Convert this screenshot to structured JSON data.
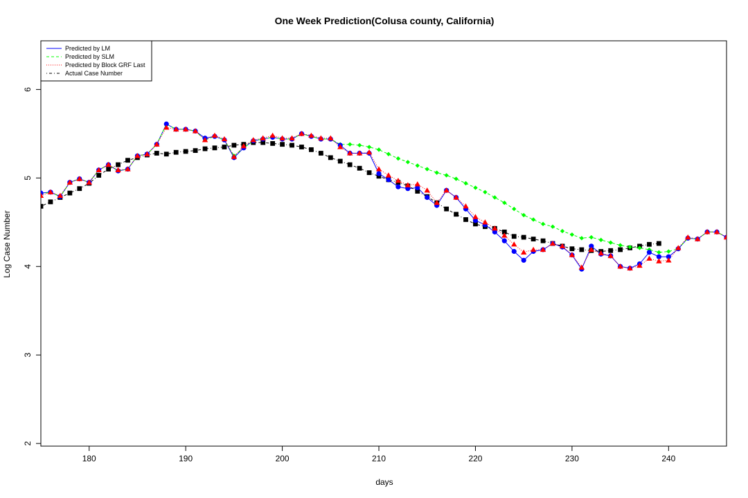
{
  "chart_data": {
    "type": "line",
    "title": "One Week Prediction(Colusa county, California)",
    "xlabel": "days",
    "ylabel": "Log Case Number",
    "xlim": [
      175,
      246
    ],
    "ylim": [
      1.97,
      6.55
    ],
    "xticks": [
      180,
      190,
      200,
      210,
      220,
      230,
      240
    ],
    "yticks": [
      2,
      3,
      4,
      5,
      6
    ],
    "grid": false,
    "legend_position": "top-left",
    "x": [
      175,
      176,
      177,
      178,
      179,
      180,
      181,
      182,
      183,
      184,
      185,
      186,
      187,
      188,
      189,
      190,
      191,
      192,
      193,
      194,
      195,
      196,
      197,
      198,
      199,
      200,
      201,
      202,
      203,
      204,
      205,
      206,
      207,
      208,
      209,
      210,
      211,
      212,
      213,
      214,
      215,
      216,
      217,
      218,
      219,
      220,
      221,
      222,
      223,
      224,
      225,
      226,
      227,
      228,
      229,
      230,
      231,
      232,
      233,
      234,
      235,
      236,
      237,
      238,
      239,
      240,
      241,
      242,
      243,
      244,
      245,
      246
    ],
    "series": [
      {
        "name": "Predicted by LM",
        "color": "#0000ff",
        "line_style": "solid",
        "marker": "circle",
        "values": [
          4.83,
          4.84,
          4.79,
          4.95,
          4.99,
          4.95,
          5.09,
          5.15,
          5.08,
          5.1,
          5.25,
          5.27,
          5.38,
          5.61,
          5.55,
          5.55,
          5.53,
          5.45,
          5.47,
          5.43,
          5.23,
          5.34,
          5.42,
          5.44,
          5.46,
          5.44,
          5.44,
          5.5,
          5.47,
          5.44,
          5.44,
          5.37,
          5.28,
          5.28,
          5.28,
          5.05,
          4.98,
          4.9,
          4.88,
          4.89,
          4.78,
          4.69,
          4.86,
          4.78,
          4.65,
          4.52,
          4.47,
          4.39,
          4.29,
          4.17,
          4.07,
          4.17,
          4.19,
          4.26,
          4.22,
          4.13,
          3.97,
          4.23,
          4.14,
          4.12,
          4.0,
          3.98,
          4.03,
          4.16,
          4.11,
          4.11,
          4.2,
          4.32,
          4.31,
          4.39,
          4.39,
          4.33
        ]
      },
      {
        "name": "Predicted by SLM",
        "color": "#00ff00",
        "line_style": "dashed",
        "marker": "diamond",
        "values": [
          4.82,
          4.84,
          4.79,
          4.95,
          4.99,
          4.95,
          5.09,
          5.15,
          5.08,
          5.1,
          5.25,
          5.27,
          5.38,
          5.61,
          5.55,
          5.55,
          5.53,
          5.43,
          5.47,
          5.43,
          5.25,
          5.34,
          5.42,
          5.44,
          5.46,
          5.44,
          5.44,
          5.5,
          5.47,
          5.44,
          5.44,
          5.38,
          5.38,
          5.37,
          5.35,
          5.32,
          5.27,
          5.22,
          5.18,
          5.14,
          5.1,
          5.06,
          5.03,
          4.99,
          4.94,
          4.89,
          4.84,
          4.78,
          4.72,
          4.65,
          4.58,
          4.53,
          4.48,
          4.45,
          4.4,
          4.36,
          4.32,
          4.33,
          4.3,
          4.27,
          4.24,
          4.22,
          4.21,
          4.19,
          4.16,
          4.17,
          4.2,
          4.32,
          4.31,
          4.39,
          4.39,
          4.33
        ]
      },
      {
        "name": "Predicted by Block GRF Last",
        "color": "#ff0000",
        "line_style": "dotted",
        "marker": "triangle",
        "values": [
          4.8,
          4.84,
          4.8,
          4.95,
          4.99,
          4.95,
          5.09,
          5.15,
          5.09,
          5.1,
          5.25,
          5.27,
          5.38,
          5.57,
          5.55,
          5.55,
          5.53,
          5.43,
          5.48,
          5.44,
          5.24,
          5.36,
          5.43,
          5.45,
          5.48,
          5.45,
          5.45,
          5.5,
          5.48,
          5.45,
          5.45,
          5.35,
          5.28,
          5.28,
          5.29,
          5.1,
          5.03,
          4.97,
          4.92,
          4.93,
          4.86,
          4.72,
          4.86,
          4.78,
          4.68,
          4.56,
          4.5,
          4.43,
          4.35,
          4.25,
          4.16,
          4.19,
          4.19,
          4.26,
          4.23,
          4.13,
          3.99,
          4.19,
          4.15,
          4.12,
          4.0,
          3.98,
          4.01,
          4.09,
          4.06,
          4.07,
          4.21,
          4.33,
          4.31,
          4.39,
          4.39,
          4.33
        ]
      },
      {
        "name": "Actual Case Number",
        "color": "#000000",
        "line_style": "dotdash",
        "marker": "square",
        "values": [
          4.68,
          4.73,
          4.78,
          4.83,
          4.88,
          4.94,
          5.03,
          5.1,
          5.15,
          5.2,
          5.23,
          5.26,
          5.28,
          5.27,
          5.29,
          5.3,
          5.31,
          5.33,
          5.34,
          5.35,
          5.37,
          5.38,
          5.4,
          5.4,
          5.39,
          5.38,
          5.37,
          5.35,
          5.32,
          5.28,
          5.23,
          5.19,
          5.15,
          5.11,
          5.06,
          5.02,
          4.98,
          4.95,
          4.91,
          4.85,
          4.79,
          4.72,
          4.65,
          4.59,
          4.53,
          4.48,
          4.45,
          4.43,
          4.39,
          4.34,
          4.33,
          4.31,
          4.29,
          4.26,
          4.23,
          4.2,
          4.19,
          4.18,
          4.17,
          4.18,
          4.19,
          4.21,
          4.23,
          4.25,
          4.26,
          null,
          null,
          null,
          null,
          null,
          null,
          null
        ]
      }
    ]
  }
}
